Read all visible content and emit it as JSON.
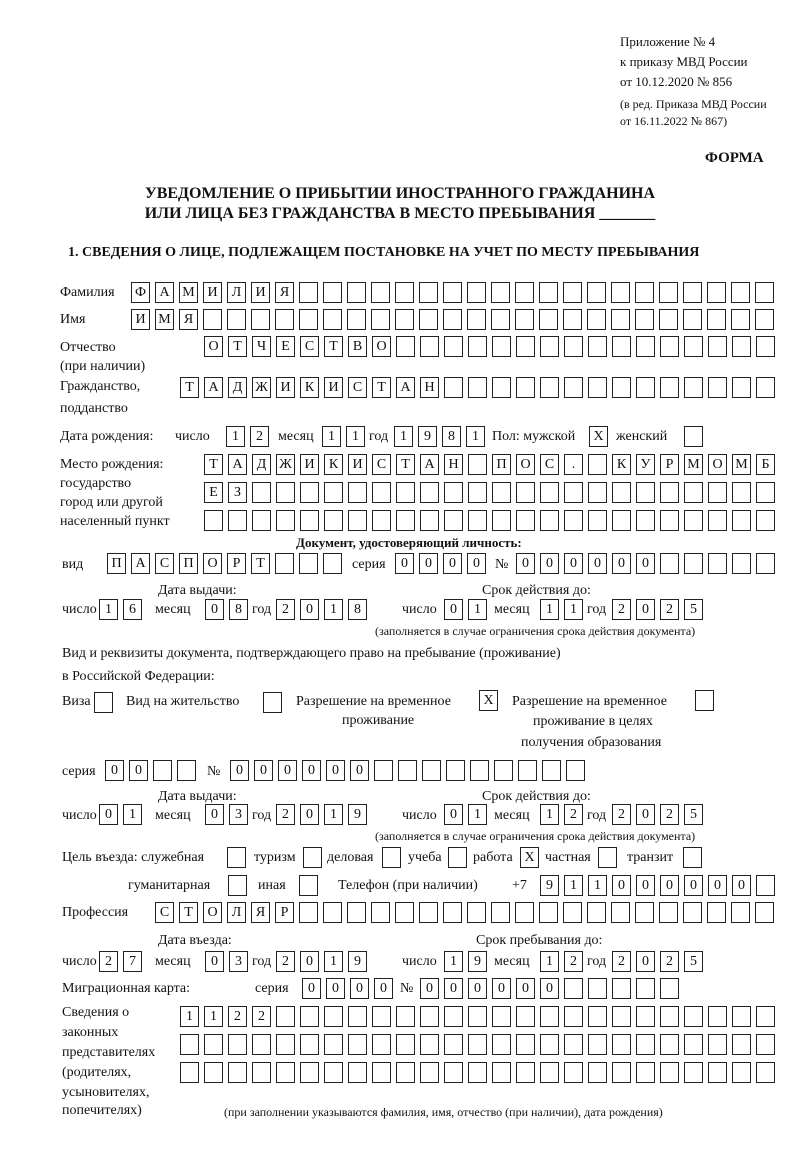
{
  "header": {
    "line1": "Приложение № 4",
    "line2": "к приказу МВД России",
    "line3": "от 10.12.2020 № 856",
    "line4": "(в ред. Приказа МВД России",
    "line5": "от 16.11.2022 № 867)",
    "form_label": "ФОРМА",
    "title1": "УВЕДОМЛЕНИЕ О ПРИБЫТИИ ИНОСТРАННОГО ГРАЖДАНИНА",
    "title2": "ИЛИ ЛИЦА БЕЗ ГРАЖДАНСТВА В МЕСТО ПРЕБЫВАНИЯ _______",
    "section1": "1. СВЕДЕНИЯ О ЛИЦЕ, ПОДЛЕЖАЩЕМ ПОСТАНОВКЕ НА УЧЕТ ПО МЕСТУ ПРЕБЫВАНИЯ"
  },
  "person": {
    "surname_label": "Фамилия",
    "surname": "ФАМИЛИЯ",
    "name_label": "Имя",
    "name": "ИМЯ",
    "patronymic_label1": "Отчество",
    "patronymic_label2": "(при наличии)",
    "patronymic": "ОТЧЕСТВО",
    "citizenship_label1": "Гражданство,",
    "citizenship_label2": "подданство",
    "citizenship": "ТАДЖИКИСТАН",
    "birth_label": "Дата рождения:",
    "day_label": "число",
    "month_label": "месяц",
    "year_label": "год",
    "birth_day": "12",
    "birth_month": "11",
    "birth_year": "1981",
    "sex_label": "Пол: мужской",
    "male": "X",
    "female_label": "женский",
    "female": "",
    "birthplace_label1": "Место рождения:",
    "birthplace_label2": "государство",
    "birthplace_label3": "город или другой",
    "birthplace_label4": "населенный пункт",
    "birthplace_row1": "ТАДЖИКИСТАН ПОС. КУРМОМБ",
    "birthplace_row2": "ЕЗ",
    "birthplace_row3": ""
  },
  "id_doc": {
    "heading": "Документ, удостоверяющий личность:",
    "kind_label": "вид",
    "kind": "ПАСПОРТ",
    "series_label": "серия",
    "series": "0000",
    "number_label": "№",
    "number": "000000",
    "issue_label": "Дата выдачи:",
    "valid_label": "Срок действия до:",
    "day_label": "число",
    "month_label": "месяц",
    "year_label": "год",
    "issue_day": "16",
    "issue_month": "08",
    "issue_year": "2018",
    "valid_day": "01",
    "valid_month": "11",
    "valid_year": "2025",
    "note": "(заполняется в случае ограничения срока действия документа)"
  },
  "stay_doc": {
    "text1": "Вид и реквизиты документа, подтверждающего право на пребывание (проживание)",
    "text2": "в Российской Федерации:",
    "visa_label": "Виза",
    "visa": "",
    "residence_label": "Вид на жительство",
    "residence": "",
    "temp_label1": "Разрешение на временное",
    "temp_label2": "проживание",
    "temp": "X",
    "edu_label1": "Разрешение на временное",
    "edu_label2": "проживание в целях",
    "edu_label3": "получения образования",
    "edu": "",
    "series_label": "серия",
    "series": "00",
    "number_label": "№",
    "number": "000000",
    "issue_label": "Дата выдачи:",
    "valid_label": "Срок действия до:",
    "day_label": "число",
    "month_label": "месяц",
    "year_label": "год",
    "issue_day": "01",
    "issue_month": "03",
    "issue_year": "2019",
    "valid_day": "01",
    "valid_month": "12",
    "valid_year": "2025",
    "note": "(заполняется в случае ограничения срока действия документа)"
  },
  "purpose": {
    "label": "Цель въезда: служебная",
    "service": "",
    "tourism_label": "туризм",
    "tourism": "",
    "business_label": "деловая",
    "business": "",
    "study_label": "учеба",
    "study": "",
    "work_label": "работа",
    "work": "X",
    "private_label": "частная",
    "private": "",
    "transit_label": "транзит",
    "transit": "",
    "humanitarian_label": "гуманитарная",
    "humanitarian": "",
    "other_label": "иная",
    "other": "",
    "phone_label": "Телефон (при наличии)",
    "phone_prefix": "+7",
    "phone": "911000000"
  },
  "profession": {
    "label": "Профессия",
    "value": "СТОЛЯР"
  },
  "entry": {
    "entry_label": "Дата въезда:",
    "stay_label": "Срок пребывания до:",
    "day_label": "число",
    "month_label": "месяц",
    "year_label": "год",
    "entry_day": "27",
    "entry_month": "03",
    "entry_year": "2019",
    "stay_day": "19",
    "stay_month": "12",
    "stay_year": "2025"
  },
  "migration_card": {
    "label": "Миграционная карта:",
    "series_label": "серия",
    "series": "0000",
    "number_label": "№",
    "number": "000000"
  },
  "representatives": {
    "label1": "Сведения о",
    "label2": "законных",
    "label3": "представителях",
    "label4": "(родителях,",
    "label5": "усыновителях,",
    "label6": "попечителях)",
    "row1": "1122",
    "row2": "",
    "row3": "",
    "note": "(при заполнении указываются фамилия, имя, отчество (при наличии), дата рождения)"
  }
}
